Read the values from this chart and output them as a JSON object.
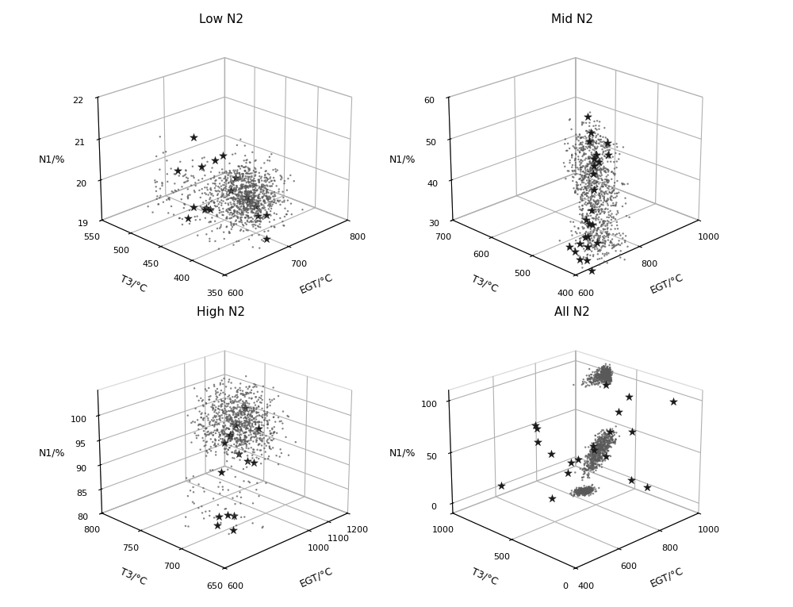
{
  "subplots": [
    {
      "title": "Low N2",
      "xlabel": "EGT/°C",
      "ylabel": "T3/°C",
      "zlabel": "N1/%",
      "xlim": [
        600,
        800
      ],
      "ylim": [
        350,
        550
      ],
      "zlim": [
        19,
        22
      ],
      "xticks": [
        600,
        700,
        800
      ],
      "yticks": [
        350,
        400,
        450,
        500,
        550
      ],
      "zticks": [
        19,
        20,
        21,
        22
      ],
      "elev": 22,
      "azim": 225
    },
    {
      "title": "Mid N2",
      "xlabel": "EGT/°C",
      "ylabel": "T3/°C",
      "zlabel": "N1/%",
      "xlim": [
        600,
        1000
      ],
      "ylim": [
        400,
        700
      ],
      "zlim": [
        30,
        60
      ],
      "xticks": [
        600,
        800,
        1000
      ],
      "yticks": [
        400,
        500,
        600,
        700
      ],
      "zticks": [
        30,
        40,
        50,
        60
      ],
      "elev": 22,
      "azim": 225
    },
    {
      "title": "High N2",
      "xlabel": "EGT/°C",
      "ylabel": "T3/°C",
      "zlabel": "N1/%",
      "xlim": [
        600,
        1200
      ],
      "ylim": [
        650,
        800
      ],
      "zlim": [
        80,
        105
      ],
      "xticks": [
        600,
        1000,
        1100,
        1200
      ],
      "yticks": [
        650,
        700,
        750,
        800
      ],
      "zticks": [
        80,
        85,
        90,
        95,
        100
      ],
      "elev": 22,
      "azim": 225
    },
    {
      "title": "All N2",
      "xlabel": "EGT/°C",
      "ylabel": "T3/°C",
      "zlabel": "N1/%",
      "xlim": [
        400,
        1000
      ],
      "ylim": [
        0,
        1000
      ],
      "zlim": [
        -10,
        110
      ],
      "xticks": [
        400,
        600,
        800,
        1000
      ],
      "yticks": [
        0,
        500,
        1000
      ],
      "zticks": [
        0,
        50,
        100
      ],
      "elev": 22,
      "azim": 225
    }
  ],
  "dot_color": "#595959",
  "star_color": "#1a1a1a",
  "dot_size": 3,
  "star_size": 55,
  "background_color": "#ffffff"
}
